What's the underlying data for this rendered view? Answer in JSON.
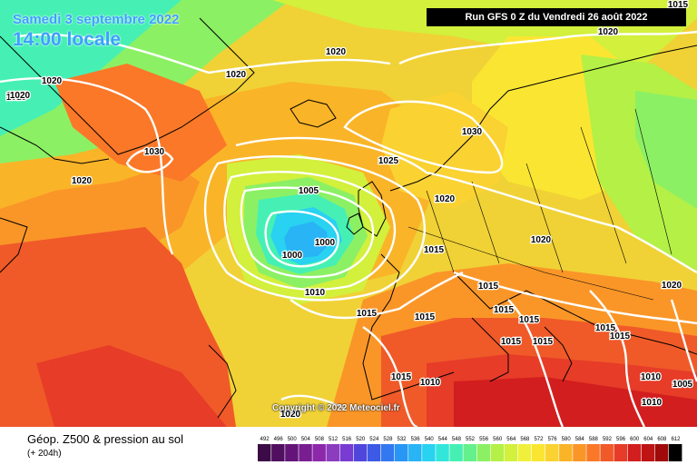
{
  "header": {
    "date": "Samedi 3 septembre 2022",
    "local_time": "14:00 locale",
    "run": "Run GFS 0 Z du Vendredi 26 août 2022"
  },
  "footer": {
    "variable": "Géop. Z500 & pression au sol",
    "lead_time": "(+ 204h)",
    "copyright": "Copyright © 2022 Meteociel.fr"
  },
  "legend": {
    "ticks": [
      "492",
      "496",
      "500",
      "504",
      "508",
      "512",
      "516",
      "520",
      "524",
      "528",
      "532",
      "536",
      "540",
      "544",
      "548",
      "552",
      "556",
      "560",
      "564",
      "568",
      "572",
      "576",
      "580",
      "584",
      "588",
      "592",
      "596",
      "600",
      "604",
      "608",
      "612"
    ],
    "colors": [
      "#3c0a46",
      "#500f5f",
      "#641478",
      "#781e91",
      "#8c28aa",
      "#8c3cbe",
      "#783cd2",
      "#5046dc",
      "#3c5ae6",
      "#3278f0",
      "#2896f5",
      "#28b4f5",
      "#28d2f0",
      "#32e6dc",
      "#46f0b4",
      "#64f08c",
      "#8cf064",
      "#b4f046",
      "#d2f03c",
      "#f0f03c",
      "#fae632",
      "#fad232",
      "#fab428",
      "#fa9628",
      "#fa7828",
      "#f05a28",
      "#e63c28",
      "#d21e1e",
      "#be1414",
      "#a00a0a",
      "#000000"
    ]
  },
  "isobars": [
    {
      "label": "1015"
    },
    {
      "label": "1020"
    },
    {
      "label": "1020"
    },
    {
      "label": "1015"
    },
    {
      "label": "1020"
    },
    {
      "label": "1020"
    },
    {
      "label": "1030"
    },
    {
      "label": "1020"
    },
    {
      "label": "1030"
    },
    {
      "label": "1025"
    },
    {
      "label": "1005"
    },
    {
      "label": "1020"
    },
    {
      "label": "1000"
    },
    {
      "label": "1000"
    },
    {
      "label": "1015"
    },
    {
      "label": "1020"
    },
    {
      "label": "1010"
    },
    {
      "label": "1015"
    },
    {
      "label": "1015"
    },
    {
      "label": "1015"
    },
    {
      "label": "1020"
    },
    {
      "label": "1015"
    },
    {
      "label": "1015"
    },
    {
      "label": "1015"
    },
    {
      "label": "1015"
    },
    {
      "label": "1015"
    },
    {
      "label": "1015"
    },
    {
      "label": "1010"
    },
    {
      "label": "1015"
    },
    {
      "label": "1010"
    },
    {
      "label": "1010"
    },
    {
      "label": "1005"
    },
    {
      "label": "1020"
    },
    {
      "label": "1015"
    },
    {
      "label": "1020"
    }
  ]
}
